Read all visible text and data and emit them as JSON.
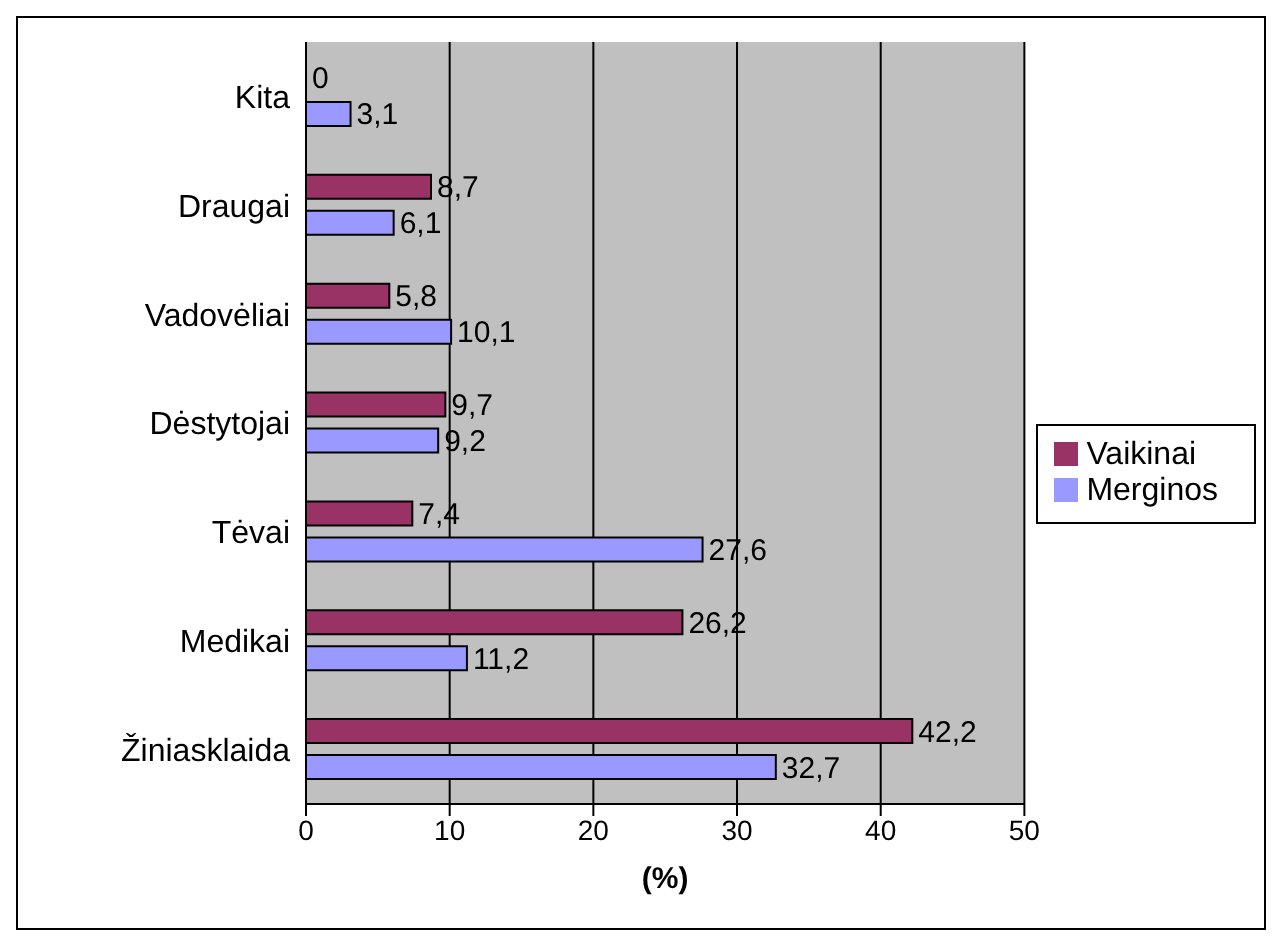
{
  "chart_data": {
    "type": "bar",
    "orientation": "horizontal",
    "xlabel": "(%)",
    "categories": [
      "Kita",
      "Draugai",
      "Vadovėliai",
      "Dėstytojai",
      "Tėvai",
      "Medikai",
      "Žiniasklaida"
    ],
    "series": [
      {
        "name": "Vaikinai",
        "color": "#993366",
        "values": [
          0,
          8.7,
          5.8,
          9.7,
          7.4,
          26.2,
          42.2
        ],
        "value_labels": [
          "0",
          "8,7",
          "5,8",
          "9,7",
          "7,4",
          "26,2",
          "42,2"
        ]
      },
      {
        "name": "Merginos",
        "color": "#9999ff",
        "values": [
          3.1,
          6.1,
          10.1,
          9.2,
          27.6,
          11.2,
          32.7
        ],
        "value_labels": [
          "3,1",
          "6,1",
          "10,1",
          "9,2",
          "27,6",
          "11,2",
          "32,7"
        ]
      }
    ],
    "xlim": [
      0,
      50
    ],
    "xticks": [
      0,
      10,
      20,
      30,
      40,
      50
    ],
    "grid": "x",
    "legend": "right"
  }
}
